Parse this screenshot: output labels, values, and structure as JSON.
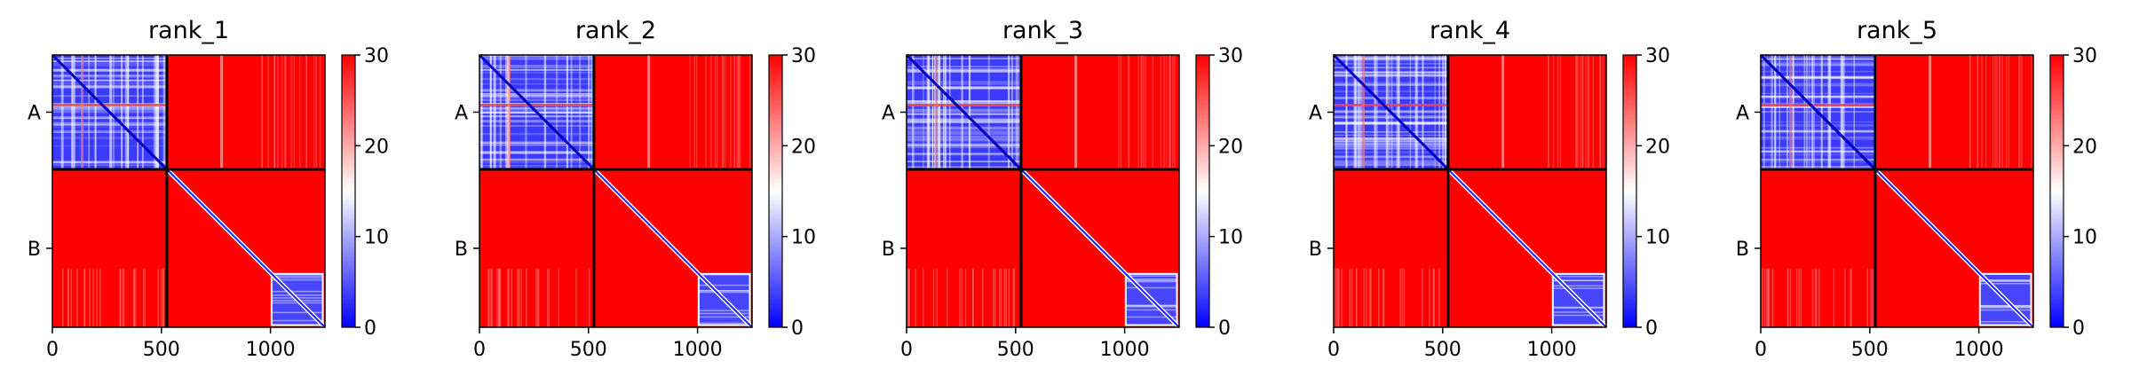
{
  "chart_data": {
    "type": "heatmap",
    "colormap": {
      "name": "bwr",
      "low_color": "#0000ff",
      "mid_color": "#ffffff",
      "high_color": "#ff0000"
    },
    "shared": {
      "xlim": [
        0,
        1250
      ],
      "x_ticks": [
        0,
        500,
        1000
      ],
      "x_tick_labels": [
        "0",
        "500",
        "1000"
      ],
      "chain_labels": [
        "A",
        "B"
      ],
      "chain_boundary": 525,
      "colorbar": {
        "range": [
          0,
          30
        ],
        "ticks": [
          0,
          10,
          20,
          30
        ],
        "tick_labels": [
          "0",
          "10",
          "20",
          "30"
        ]
      }
    },
    "panels": [
      {
        "title": "rank_1"
      },
      {
        "title": "rank_2"
      },
      {
        "title": "rank_3"
      },
      {
        "title": "rank_4"
      },
      {
        "title": "rank_5"
      }
    ]
  }
}
